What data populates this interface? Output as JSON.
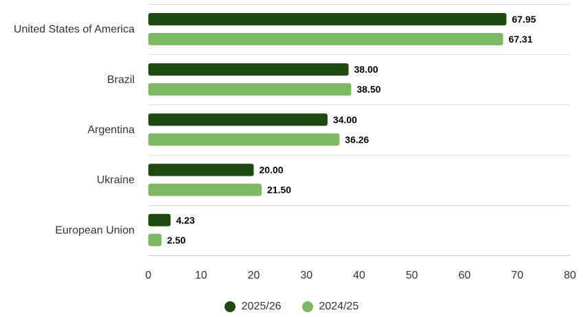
{
  "chart_data": {
    "type": "bar",
    "orientation": "horizontal",
    "categories": [
      "United States of America",
      "Brazil",
      "Argentina",
      "Ukraine",
      "European Union"
    ],
    "series": [
      {
        "name": "2025/26",
        "values": [
          67.95,
          38.0,
          34.0,
          20.0,
          4.23
        ],
        "color": "#1e4a0f"
      },
      {
        "name": "2024/25",
        "values": [
          67.31,
          38.5,
          36.26,
          21.5,
          2.5
        ],
        "color": "#7db865"
      }
    ],
    "xlim": [
      0,
      80
    ],
    "x_ticks": [
      0,
      10,
      20,
      30,
      40,
      50,
      60,
      70,
      80
    ],
    "value_format_decimals": 2,
    "grid": "horizontal category separators",
    "legend_position": "bottom-center"
  }
}
